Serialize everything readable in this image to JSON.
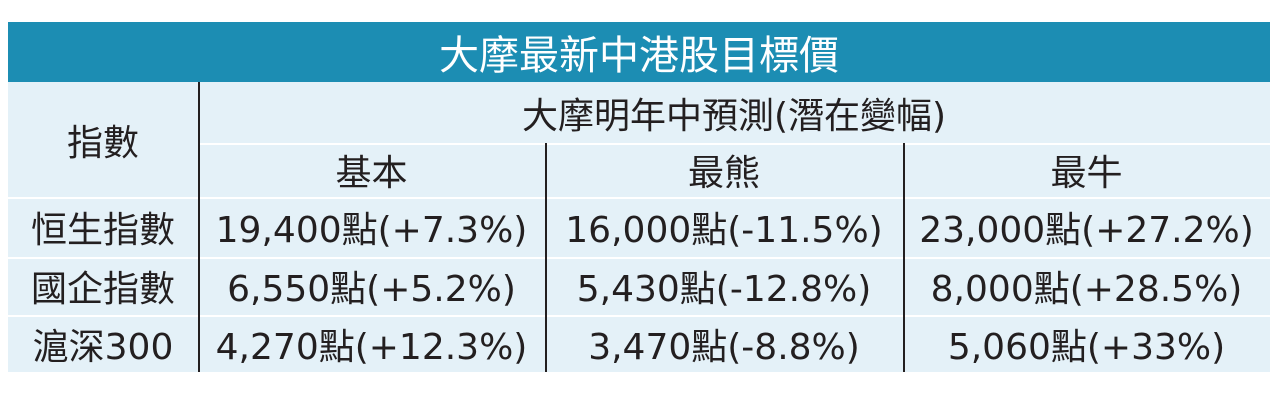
{
  "title": "大摩最新中港股目標價",
  "table": {
    "index_header": "指數",
    "group_header": "大摩明年中預測(潛在變幅)",
    "columns": [
      "基本",
      "最熊",
      "最牛"
    ],
    "rows": [
      {
        "label": "恒生指數",
        "cells": [
          "19,400點(+7.3%)",
          "16,000點(-11.5%)",
          "23,000點(+27.2%)"
        ]
      },
      {
        "label": "國企指數",
        "cells": [
          "6,550點(+5.2%)",
          "5,430點(-12.8%)",
          "8,000點(+28.5%)"
        ]
      },
      {
        "label": "滬深300",
        "cells": [
          "4,270點(+12.3%)",
          "3,470點(-8.8%)",
          "5,060點(+33%)"
        ]
      }
    ]
  }
}
